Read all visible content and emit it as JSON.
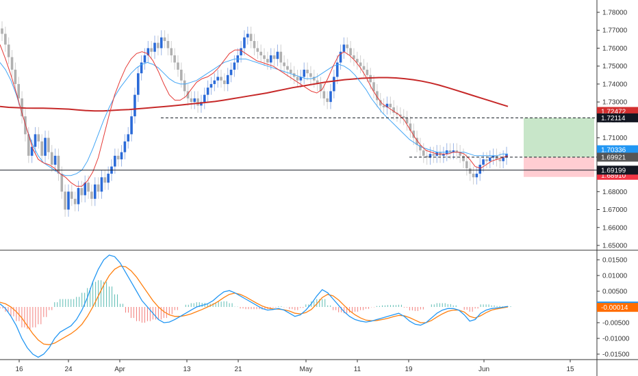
{
  "chart_data": [
    {
      "type": "candlestick",
      "title": "",
      "x_ticks": [
        "16",
        "24",
        "Apr",
        "13",
        "21",
        "May",
        "11",
        "19",
        "Jun",
        "15"
      ],
      "y_ticks": [
        "1.78000",
        "1.77000",
        "1.76000",
        "1.75000",
        "1.74000",
        "1.73000",
        "1.72000",
        "1.71000",
        "1.70000",
        "1.69000",
        "1.68000",
        "1.67000",
        "1.66000",
        "1.65000"
      ],
      "ylim": [
        1.6475,
        1.7845
      ],
      "grid": false,
      "candles_close": [
        1.768,
        1.762,
        1.755,
        1.748,
        1.74,
        1.732,
        1.722,
        1.712,
        1.7,
        1.705,
        1.712,
        1.708,
        1.7,
        1.71,
        1.702,
        1.695,
        1.7,
        1.69,
        1.68,
        1.67,
        1.68,
        1.676,
        1.673,
        1.682,
        1.678,
        1.685,
        1.68,
        1.676,
        1.684,
        1.68,
        1.688,
        1.685,
        1.69,
        1.694,
        1.7,
        1.698,
        1.702,
        1.708,
        1.712,
        1.722,
        1.734,
        1.746,
        1.752,
        1.756,
        1.76,
        1.758,
        1.763,
        1.76,
        1.766,
        1.764,
        1.76,
        1.756,
        1.752,
        1.748,
        1.742,
        1.736,
        1.732,
        1.73,
        1.732,
        1.728,
        1.73,
        1.734,
        1.738,
        1.74,
        1.742,
        1.744,
        1.742,
        1.74,
        1.745,
        1.748,
        1.752,
        1.756,
        1.76,
        1.766,
        1.768,
        1.764,
        1.76,
        1.758,
        1.756,
        1.754,
        1.752,
        1.756,
        1.754,
        1.758,
        1.752,
        1.75,
        1.748,
        1.746,
        1.744,
        1.742,
        1.744,
        1.748,
        1.746,
        1.744,
        1.742,
        1.74,
        1.736,
        1.732,
        1.73,
        1.736,
        1.744,
        1.752,
        1.758,
        1.762,
        1.76,
        1.756,
        1.754,
        1.752,
        1.75,
        1.748,
        1.745,
        1.741,
        1.736,
        1.731,
        1.728,
        1.727,
        1.729,
        1.727,
        1.724,
        1.723,
        1.722,
        1.721,
        1.718,
        1.714,
        1.71,
        1.706,
        1.703,
        1.7,
        1.699,
        1.701,
        1.7,
        1.702,
        1.7,
        1.701,
        1.703,
        1.702,
        1.703,
        1.702,
        1.7,
        1.697,
        1.693,
        1.69,
        1.688,
        1.69,
        1.695,
        1.698,
        1.697,
        1.699,
        1.7,
        1.698,
        1.697,
        1.699,
        1.701
      ],
      "candles_trend": [
        0,
        0,
        0,
        0,
        0,
        0,
        0,
        0,
        0,
        1,
        1,
        0,
        0,
        1,
        0,
        0,
        1,
        0,
        0,
        0,
        1,
        0,
        0,
        1,
        0,
        1,
        0,
        0,
        1,
        0,
        1,
        0,
        1,
        1,
        1,
        0,
        1,
        1,
        1,
        1,
        1,
        1,
        1,
        1,
        1,
        0,
        1,
        0,
        1,
        0,
        0,
        0,
        0,
        0,
        0,
        0,
        0,
        0,
        1,
        0,
        1,
        1,
        1,
        1,
        1,
        1,
        0,
        0,
        1,
        1,
        1,
        1,
        1,
        1,
        1,
        0,
        0,
        0,
        0,
        0,
        0,
        1,
        0,
        1,
        0,
        0,
        0,
        0,
        0,
        0,
        1,
        1,
        0,
        0,
        0,
        0,
        0,
        0,
        0,
        1,
        1,
        1,
        1,
        1,
        0,
        0,
        0,
        0,
        0,
        0,
        0,
        0,
        0,
        0,
        0,
        0,
        1,
        0,
        0,
        0,
        0,
        0,
        0,
        0,
        0,
        0,
        0,
        0,
        0,
        1,
        0,
        1,
        0,
        1,
        1,
        0,
        1,
        0,
        0,
        0,
        0,
        0,
        0,
        1,
        1,
        1,
        0,
        1,
        1,
        0,
        0,
        1,
        1
      ],
      "ma200": [
        1.7275,
        1.727,
        1.7268,
        1.7266,
        1.7265,
        1.7265,
        1.7264,
        1.7262,
        1.726,
        1.7256,
        1.7252,
        1.725,
        1.725,
        1.7253,
        1.7256,
        1.7258,
        1.7262,
        1.7266,
        1.727,
        1.7274,
        1.7278,
        1.7283,
        1.7288,
        1.7293,
        1.7298,
        1.7303,
        1.731,
        1.7318,
        1.7326,
        1.7334,
        1.7342,
        1.735,
        1.736,
        1.737,
        1.738,
        1.7388,
        1.7396,
        1.7404,
        1.7412,
        1.7418,
        1.7424,
        1.7428,
        1.7432,
        1.7434,
        1.7436,
        1.7436,
        1.7434,
        1.743,
        1.7424,
        1.7416,
        1.7406,
        1.7394,
        1.738,
        1.7365,
        1.735,
        1.7335,
        1.732,
        1.7305,
        1.729,
        1.7275
      ],
      "ma_red_fast": [
        1.762,
        1.754,
        1.745,
        1.735,
        1.724,
        1.714,
        1.704,
        1.698,
        1.696,
        1.695,
        1.693,
        1.69,
        1.688,
        1.685,
        1.683,
        1.683,
        1.686,
        1.691,
        1.699,
        1.711,
        1.723,
        1.734,
        1.742,
        1.749,
        1.754,
        1.757,
        1.758,
        1.757,
        1.753,
        1.747,
        1.74,
        1.734,
        1.731,
        1.731,
        1.733,
        1.737,
        1.741,
        1.743,
        1.744,
        1.746,
        1.749,
        1.753,
        1.757,
        1.759,
        1.759,
        1.757,
        1.755,
        1.753,
        1.752,
        1.751,
        1.75,
        1.748,
        1.746,
        1.744,
        1.742,
        1.74,
        1.738,
        1.736,
        1.735,
        1.737,
        1.743,
        1.75,
        1.756,
        1.758,
        1.756,
        1.753,
        1.749,
        1.744,
        1.738,
        1.733,
        1.729,
        1.727,
        1.725,
        1.723,
        1.72,
        1.715,
        1.71,
        1.706,
        1.703,
        1.702,
        1.701,
        1.701,
        1.701,
        1.702,
        1.702,
        1.701,
        1.698,
        1.694,
        1.693,
        1.695,
        1.697,
        1.698,
        1.699,
        1.7
      ],
      "ma_blue_slow": [
        1.752,
        1.748,
        1.742,
        1.734,
        1.724,
        1.714,
        1.706,
        1.7,
        1.696,
        1.694,
        1.692,
        1.69,
        1.689,
        1.689,
        1.69,
        1.692,
        1.697,
        1.704,
        1.712,
        1.72,
        1.727,
        1.733,
        1.738,
        1.742,
        1.746,
        1.749,
        1.751,
        1.752,
        1.751,
        1.749,
        1.746,
        1.743,
        1.741,
        1.74,
        1.74,
        1.741,
        1.742,
        1.744,
        1.746,
        1.748,
        1.75,
        1.752,
        1.753,
        1.754,
        1.754,
        1.754,
        1.753,
        1.752,
        1.751,
        1.75,
        1.749,
        1.748,
        1.747,
        1.746,
        1.745,
        1.744,
        1.743,
        1.743,
        1.744,
        1.746,
        1.748,
        1.75,
        1.751,
        1.75,
        1.748,
        1.745,
        1.741,
        1.737,
        1.732,
        1.728,
        1.724,
        1.721,
        1.718,
        1.715,
        1.712,
        1.709,
        1.707,
        1.705,
        1.704,
        1.703,
        1.702,
        1.702,
        1.702,
        1.702,
        1.702,
        1.702,
        1.701,
        1.7,
        1.7,
        1.7,
        1.7,
        1.7,
        1.701,
        1.701
      ],
      "levels": [
        {
          "label": "1.72114",
          "value": 1.72114,
          "style": "dashed",
          "tag_color": "#131722"
        },
        {
          "label": "1.69921",
          "value": 1.69921,
          "style": "dashed",
          "tag_color": "#555555"
        },
        {
          "label": "1.69199",
          "value": 1.69199,
          "style": "solid",
          "tag_color": "#131722"
        }
      ],
      "price_tags": [
        {
          "label": "1.72472",
          "value": 1.72472,
          "color": "#d32f2f"
        },
        {
          "label": "1.70336",
          "value": 1.70336,
          "color": "#2196f3"
        },
        {
          "label": "1.68910",
          "value": 1.6891,
          "color": "#f23645"
        }
      ],
      "position_box": {
        "entry": 1.69921,
        "target": 1.72114,
        "stop": 1.6882,
        "profit_color": "#c8e6c9",
        "loss_color": "#ffcdd2"
      }
    },
    {
      "type": "macd",
      "title": "",
      "y_ticks": [
        "0.01500",
        "0.01000",
        "0.00500",
        "0.00000",
        "-0.00500",
        "-0.01000",
        "-0.01500"
      ],
      "ylim": [
        -0.018,
        0.018
      ],
      "macd_line": [
        0.001,
        -0.0005,
        -0.003,
        -0.006,
        -0.01,
        -0.013,
        -0.015,
        -0.016,
        -0.015,
        -0.013,
        -0.01,
        -0.008,
        -0.007,
        -0.006,
        -0.004,
        -0.001,
        0.003,
        0.008,
        0.012,
        0.015,
        0.0165,
        0.016,
        0.014,
        0.011,
        0.008,
        0.005,
        0.002,
        0.0,
        -0.002,
        -0.004,
        -0.005,
        -0.0048,
        -0.004,
        -0.003,
        -0.002,
        -0.001,
        0.0,
        0.0005,
        0.001,
        0.002,
        0.0035,
        0.0048,
        0.0052,
        0.0045,
        0.0035,
        0.0025,
        0.0015,
        0.0005,
        -0.0005,
        -0.001,
        -0.0008,
        -0.0005,
        -0.001,
        -0.002,
        -0.003,
        -0.0025,
        -0.001,
        0.001,
        0.0035,
        0.0055,
        0.0045,
        0.0025,
        0.0005,
        -0.0015,
        -0.003,
        -0.004,
        -0.0045,
        -0.0048,
        -0.0045,
        -0.004,
        -0.0035,
        -0.003,
        -0.0025,
        -0.002,
        -0.003,
        -0.0045,
        -0.0055,
        -0.0058,
        -0.005,
        -0.0035,
        -0.002,
        -0.001,
        -0.0005,
        -0.0005,
        -0.001,
        -0.0025,
        -0.0045,
        -0.004,
        -0.002,
        -0.001,
        -0.0005,
        -0.0003,
        -0.0001,
        0.0002
      ],
      "signal_line": [
        0.0015,
        0.001,
        0.0,
        -0.0015,
        -0.0035,
        -0.006,
        -0.0085,
        -0.0105,
        -0.0118,
        -0.012,
        -0.0115,
        -0.0105,
        -0.0095,
        -0.0085,
        -0.0072,
        -0.0055,
        -0.003,
        0.0,
        0.0035,
        0.007,
        0.01,
        0.012,
        0.013,
        0.0128,
        0.0115,
        0.0095,
        0.007,
        0.0045,
        0.002,
        0.0,
        -0.0015,
        -0.0025,
        -0.003,
        -0.003,
        -0.0027,
        -0.0022,
        -0.0015,
        -0.0008,
        0.0,
        0.0008,
        0.0018,
        0.003,
        0.004,
        0.0044,
        0.004,
        0.0032,
        0.0022,
        0.0012,
        0.0003,
        -0.0003,
        -0.0006,
        -0.0007,
        -0.0009,
        -0.0013,
        -0.002,
        -0.0022,
        -0.0018,
        -0.0008,
        0.001,
        0.003,
        0.004,
        0.0035,
        0.0022,
        0.0005,
        -0.0012,
        -0.0025,
        -0.0035,
        -0.0042,
        -0.0044,
        -0.0043,
        -0.004,
        -0.0036,
        -0.0031,
        -0.0027,
        -0.0028,
        -0.0034,
        -0.0042,
        -0.005,
        -0.005,
        -0.0043,
        -0.0032,
        -0.0022,
        -0.0014,
        -0.001,
        -0.001,
        -0.0016,
        -0.003,
        -0.0035,
        -0.0028,
        -0.0018,
        -0.001,
        -0.0006,
        -0.0003,
        0.0
      ],
      "price_tags": [
        {
          "label": "-0.00014",
          "value": -0.00014,
          "color": "#ff6d00"
        },
        {
          "label": "",
          "value": 0.0003,
          "color": "#2196f3"
        }
      ]
    }
  ]
}
